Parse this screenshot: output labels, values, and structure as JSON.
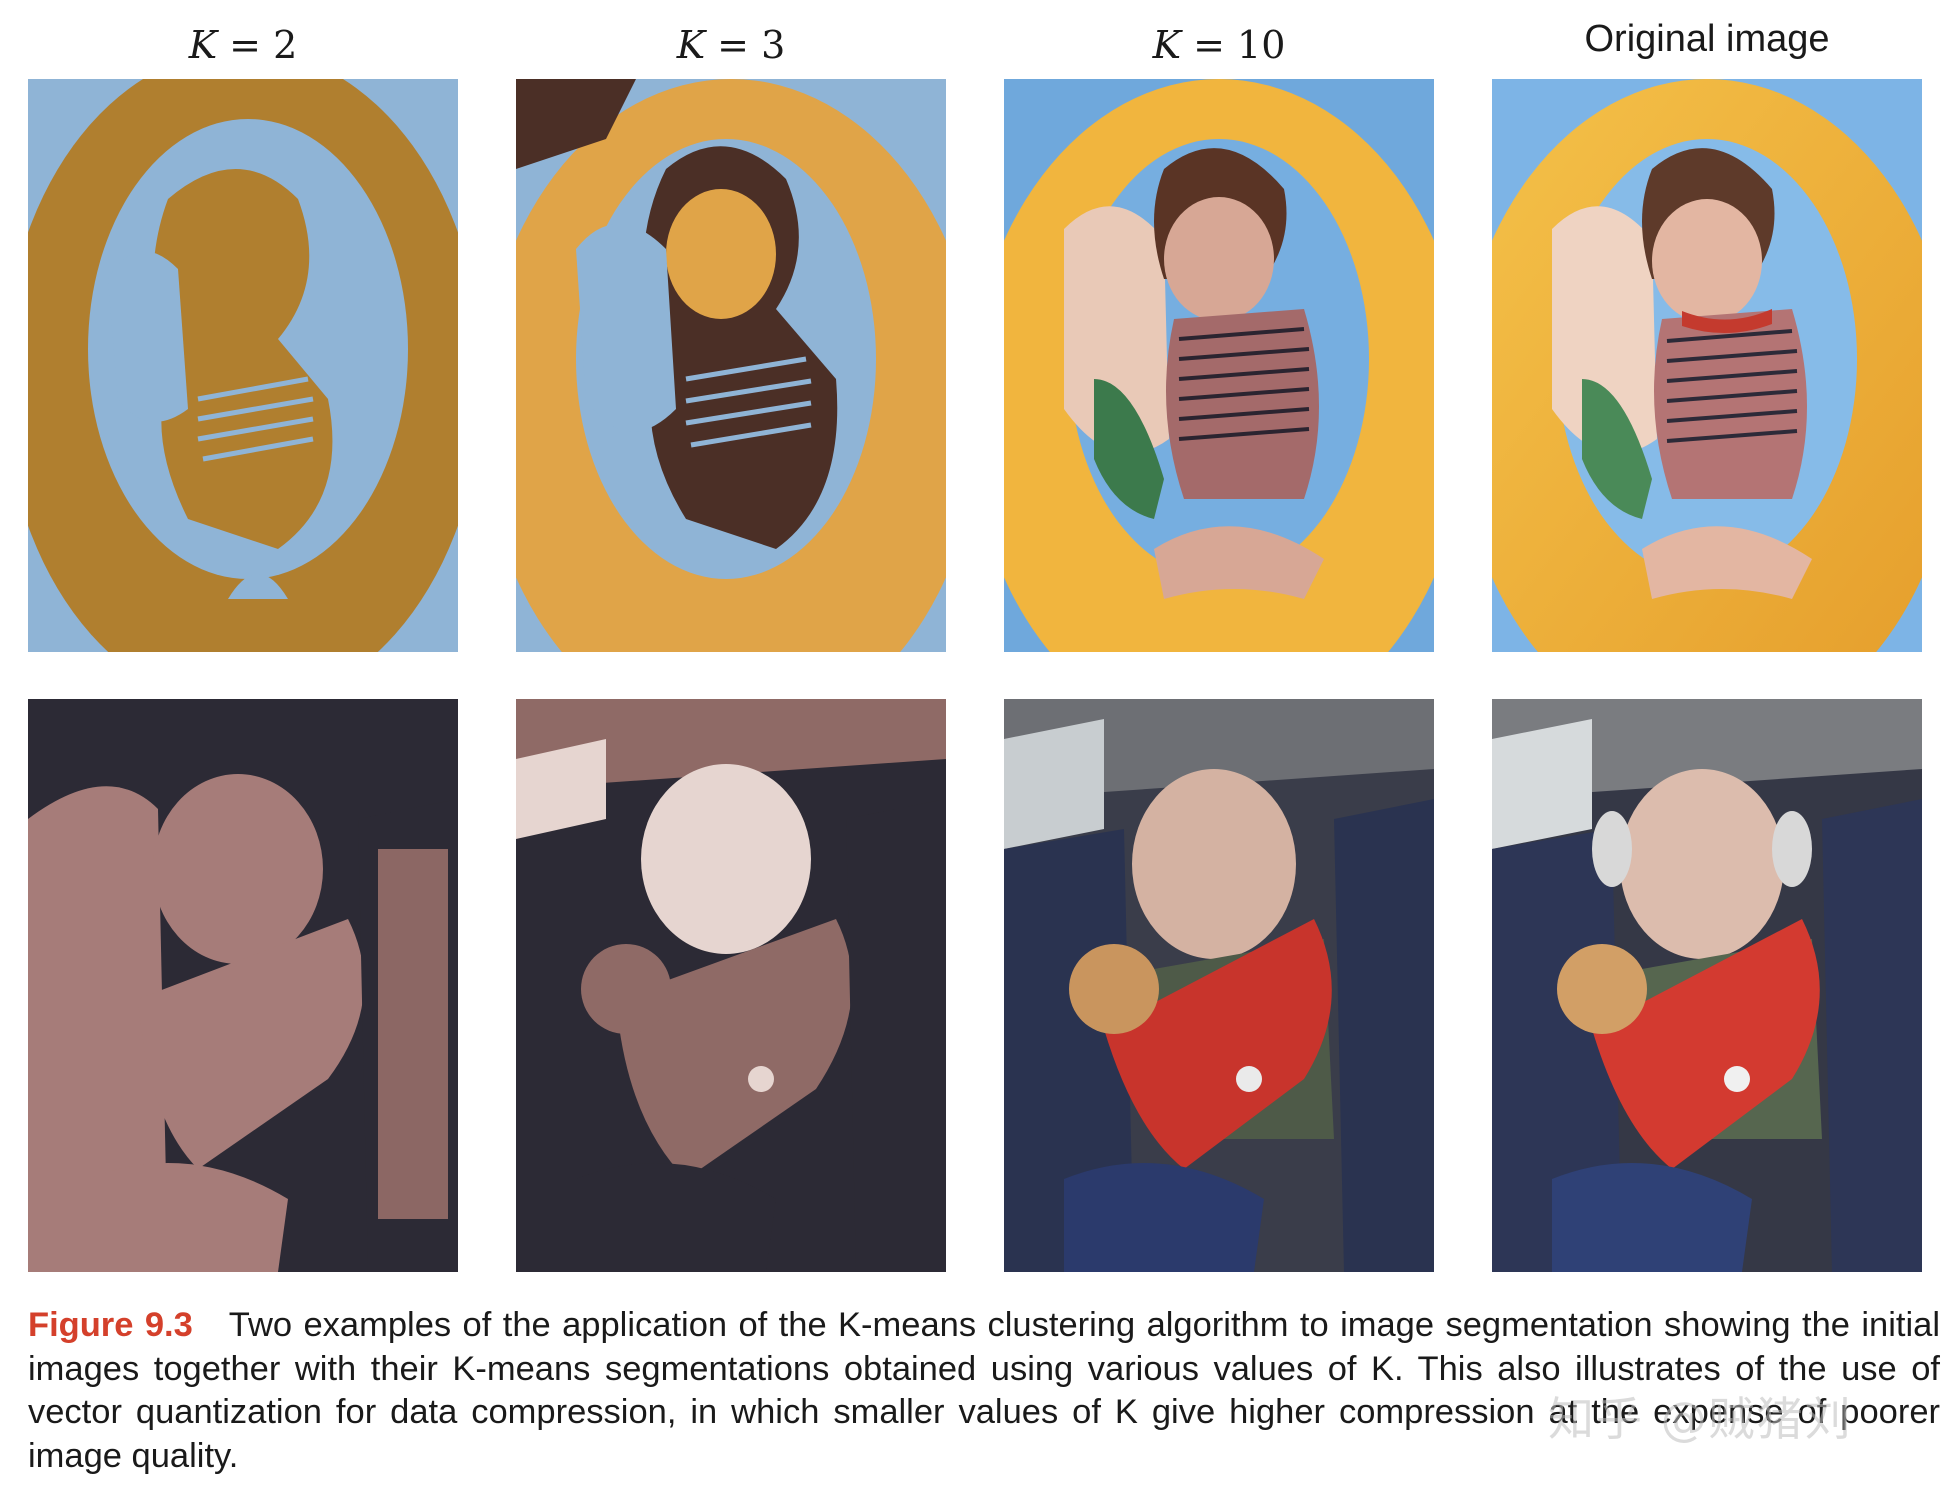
{
  "columns": [
    {
      "prefix": "K",
      "eq": " = ",
      "value": "2"
    },
    {
      "prefix": "K",
      "eq": " = ",
      "value": "3"
    },
    {
      "prefix": "K",
      "eq": " = ",
      "value": "10"
    },
    {
      "label": "Original image"
    }
  ],
  "figure": {
    "label": "Figure 9.3",
    "caption": "Two examples of the application of the K-means clustering algorithm to image segmentation showing the initial images together with their K-means segmentations obtained using various values of K. This also illustrates of the use of vector quantization for data compression, in which smaller values of K give higher compression at the expense of poorer image quality."
  },
  "watermark": "知乎 @贼猪刘",
  "colors": {
    "k2_row1": [
      "#b07f2f",
      "#8fb4d6"
    ],
    "k3_row1": [
      "#e0a448",
      "#8fb4d6",
      "#4b2f26"
    ],
    "k2_row2": [
      "#2c2a35",
      "#a67c79"
    ],
    "k3_row2": [
      "#2c2a35",
      "#8f6a66",
      "#e6d5d0"
    ],
    "caption_label": "#d4402b"
  }
}
